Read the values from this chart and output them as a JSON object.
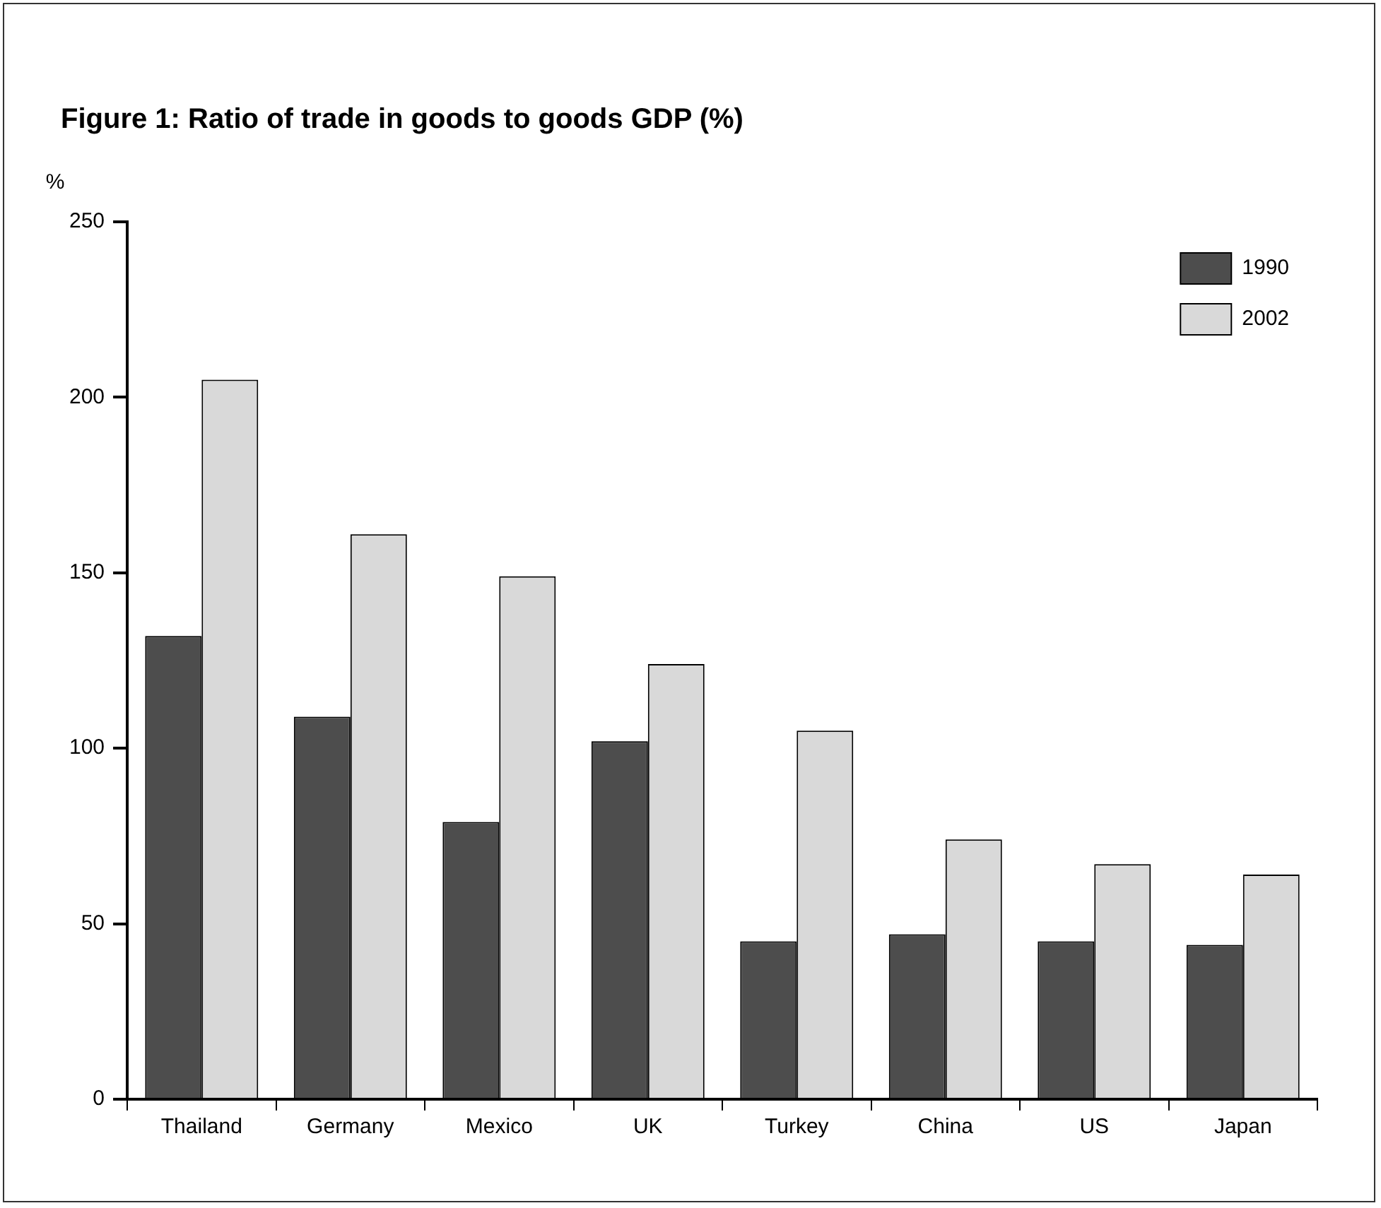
{
  "chart_data": {
    "type": "bar",
    "title": "Figure 1: Ratio of trade in goods to goods GDP (%)",
    "ylabel": "%",
    "categories": [
      "Thailand",
      "Germany",
      "Mexico",
      "UK",
      "Turkey",
      "China",
      "US",
      "Japan"
    ],
    "series": [
      {
        "name": "1990",
        "color": "#4d4d4d",
        "values": [
          132,
          109,
          79,
          102,
          45,
          47,
          45,
          44
        ]
      },
      {
        "name": "2002",
        "color": "#d9d9d9",
        "values": [
          205,
          161,
          149,
          124,
          105,
          74,
          67,
          64
        ]
      }
    ],
    "ylim": [
      0,
      250
    ],
    "yticks": [
      0,
      50,
      100,
      150,
      200,
      250
    ],
    "grid": false,
    "legend": "top right"
  }
}
